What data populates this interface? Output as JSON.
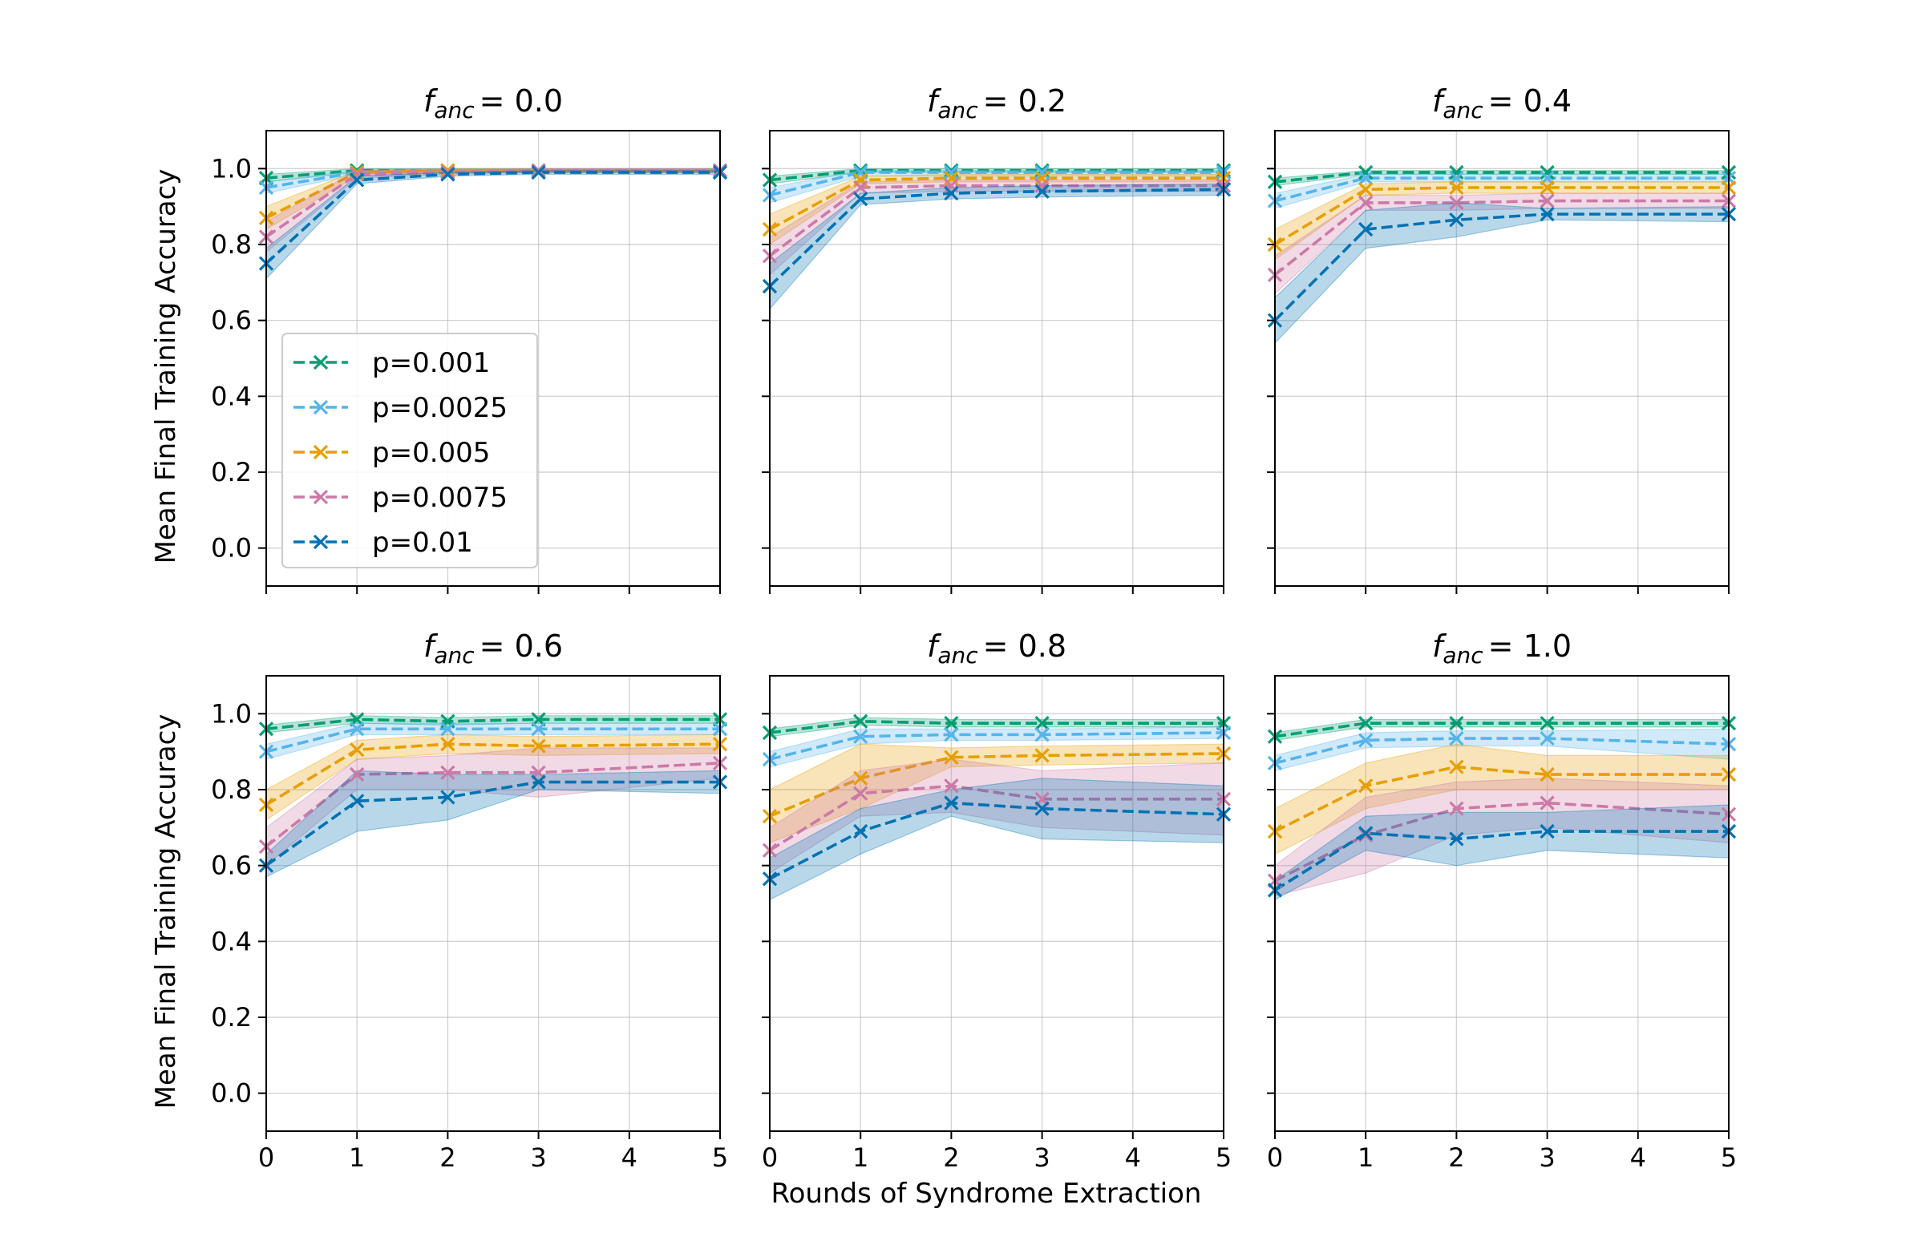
{
  "chart_data": {
    "type": "line",
    "xlabel": "Rounds of Syndrome Extraction",
    "ylabel": "Mean Final Training Accuracy",
    "x": [
      0,
      1,
      2,
      3,
      4,
      5
    ],
    "xlim": [
      0,
      5
    ],
    "ylim": [
      -0.1,
      1.1
    ],
    "xticks": [
      "0",
      "1",
      "2",
      "3",
      "4",
      "5"
    ],
    "yticks": [
      "0.0",
      "0.2",
      "0.4",
      "0.6",
      "0.8",
      "1.0"
    ],
    "grid": true,
    "legend_position": "lower-left of first panel",
    "series_colors": {
      "p=0.001": "#009e73",
      "p=0.0025": "#56b4e9",
      "p=0.005": "#e69f00",
      "p=0.0075": "#cc79a7",
      "p=0.01": "#0072b2"
    },
    "legend": [
      "p=0.001",
      "p=0.0025",
      "p=0.005",
      "p=0.0075",
      "p=0.01"
    ],
    "panels": [
      {
        "title_symbol": "f",
        "title_sub": "anc",
        "title_value": "= 0.0",
        "series": [
          {
            "name": "p=0.001",
            "x": [
              0,
              1,
              2,
              3,
              5
            ],
            "values": [
              0.975,
              0.995,
              0.995,
              0.995,
              0.995
            ],
            "lower": [
              0.965,
              0.99,
              0.99,
              0.99,
              0.99
            ],
            "upper": [
              0.985,
              1.0,
              1.0,
              1.0,
              1.0
            ]
          },
          {
            "name": "p=0.0025",
            "x": [
              0,
              1,
              2,
              3,
              5
            ],
            "values": [
              0.95,
              0.99,
              0.995,
              0.995,
              0.995
            ],
            "lower": [
              0.935,
              0.985,
              0.99,
              0.99,
              0.99
            ],
            "upper": [
              0.965,
              0.995,
              1.0,
              1.0,
              1.0
            ]
          },
          {
            "name": "p=0.005",
            "x": [
              0,
              1,
              2,
              3,
              5
            ],
            "values": [
              0.87,
              0.99,
              0.995,
              0.995,
              0.995
            ],
            "lower": [
              0.84,
              0.98,
              0.99,
              0.99,
              0.99
            ],
            "upper": [
              0.9,
              0.995,
              1.0,
              1.0,
              1.0
            ]
          },
          {
            "name": "p=0.0075",
            "x": [
              0,
              1,
              2,
              3,
              5
            ],
            "values": [
              0.82,
              0.985,
              0.99,
              0.995,
              0.995
            ],
            "lower": [
              0.78,
              0.975,
              0.985,
              0.99,
              0.99
            ],
            "upper": [
              0.86,
              0.995,
              0.995,
              1.0,
              1.0
            ]
          },
          {
            "name": "p=0.01",
            "x": [
              0,
              1,
              2,
              3,
              5
            ],
            "values": [
              0.75,
              0.97,
              0.985,
              0.99,
              0.99
            ],
            "lower": [
              0.71,
              0.96,
              0.98,
              0.985,
              0.985
            ],
            "upper": [
              0.79,
              0.98,
              0.99,
              0.995,
              0.995
            ]
          }
        ]
      },
      {
        "title_symbol": "f",
        "title_sub": "anc",
        "title_value": "= 0.2",
        "series": [
          {
            "name": "p=0.001",
            "x": [
              0,
              1,
              2,
              3,
              5
            ],
            "values": [
              0.97,
              0.995,
              0.995,
              0.995,
              0.995
            ],
            "lower": [
              0.96,
              0.99,
              0.99,
              0.99,
              0.99
            ],
            "upper": [
              0.98,
              1.0,
              1.0,
              1.0,
              1.0
            ]
          },
          {
            "name": "p=0.0025",
            "x": [
              0,
              1,
              2,
              3,
              5
            ],
            "values": [
              0.93,
              0.99,
              0.99,
              0.99,
              0.99
            ],
            "lower": [
              0.91,
              0.98,
              0.98,
              0.98,
              0.98
            ],
            "upper": [
              0.95,
              0.995,
              0.995,
              0.995,
              0.995
            ]
          },
          {
            "name": "p=0.005",
            "x": [
              0,
              1,
              2,
              3,
              5
            ],
            "values": [
              0.84,
              0.97,
              0.975,
              0.975,
              0.975
            ],
            "lower": [
              0.8,
              0.96,
              0.965,
              0.965,
              0.965
            ],
            "upper": [
              0.88,
              0.98,
              0.985,
              0.985,
              0.985
            ]
          },
          {
            "name": "p=0.0075",
            "x": [
              0,
              1,
              2,
              3,
              5
            ],
            "values": [
              0.77,
              0.95,
              0.955,
              0.955,
              0.955
            ],
            "lower": [
              0.72,
              0.935,
              0.94,
              0.94,
              0.94
            ],
            "upper": [
              0.82,
              0.965,
              0.97,
              0.97,
              0.97
            ]
          },
          {
            "name": "p=0.01",
            "x": [
              0,
              1,
              2,
              3,
              5
            ],
            "values": [
              0.69,
              0.92,
              0.935,
              0.94,
              0.945
            ],
            "lower": [
              0.63,
              0.905,
              0.92,
              0.925,
              0.93
            ],
            "upper": [
              0.75,
              0.935,
              0.95,
              0.955,
              0.96
            ]
          }
        ]
      },
      {
        "title_symbol": "f",
        "title_sub": "anc",
        "title_value": "= 0.4",
        "series": [
          {
            "name": "p=0.001",
            "x": [
              0,
              1,
              2,
              3,
              5
            ],
            "values": [
              0.965,
              0.99,
              0.99,
              0.99,
              0.99
            ],
            "lower": [
              0.955,
              0.985,
              0.985,
              0.985,
              0.985
            ],
            "upper": [
              0.975,
              0.995,
              0.995,
              0.995,
              0.995
            ]
          },
          {
            "name": "p=0.0025",
            "x": [
              0,
              1,
              2,
              3,
              5
            ],
            "values": [
              0.915,
              0.975,
              0.975,
              0.975,
              0.975
            ],
            "lower": [
              0.895,
              0.965,
              0.965,
              0.965,
              0.965
            ],
            "upper": [
              0.935,
              0.985,
              0.985,
              0.985,
              0.985
            ]
          },
          {
            "name": "p=0.005",
            "x": [
              0,
              1,
              2,
              3,
              5
            ],
            "values": [
              0.8,
              0.945,
              0.95,
              0.95,
              0.95
            ],
            "lower": [
              0.76,
              0.93,
              0.935,
              0.935,
              0.935
            ],
            "upper": [
              0.84,
              0.96,
              0.965,
              0.965,
              0.965
            ]
          },
          {
            "name": "p=0.0075",
            "x": [
              0,
              1,
              2,
              3,
              5
            ],
            "values": [
              0.72,
              0.91,
              0.91,
              0.915,
              0.915
            ],
            "lower": [
              0.67,
              0.89,
              0.89,
              0.895,
              0.895
            ],
            "upper": [
              0.77,
              0.93,
              0.93,
              0.935,
              0.935
            ]
          },
          {
            "name": "p=0.01",
            "x": [
              0,
              1,
              2,
              3,
              5
            ],
            "values": [
              0.6,
              0.84,
              0.865,
              0.88,
              0.88
            ],
            "lower": [
              0.54,
              0.79,
              0.82,
              0.865,
              0.86
            ],
            "upper": [
              0.66,
              0.89,
              0.91,
              0.895,
              0.9
            ]
          }
        ]
      },
      {
        "title_symbol": "f",
        "title_sub": "anc",
        "title_value": "= 0.6",
        "series": [
          {
            "name": "p=0.001",
            "x": [
              0,
              1,
              2,
              3,
              5
            ],
            "values": [
              0.96,
              0.985,
              0.98,
              0.985,
              0.985
            ],
            "lower": [
              0.95,
              0.975,
              0.97,
              0.975,
              0.975
            ],
            "upper": [
              0.97,
              0.995,
              0.99,
              0.995,
              0.995
            ]
          },
          {
            "name": "p=0.0025",
            "x": [
              0,
              1,
              2,
              3,
              5
            ],
            "values": [
              0.9,
              0.96,
              0.96,
              0.96,
              0.96
            ],
            "lower": [
              0.88,
              0.945,
              0.945,
              0.945,
              0.945
            ],
            "upper": [
              0.92,
              0.975,
              0.975,
              0.975,
              0.975
            ]
          },
          {
            "name": "p=0.005",
            "x": [
              0,
              1,
              2,
              3,
              5
            ],
            "values": [
              0.76,
              0.905,
              0.92,
              0.915,
              0.92
            ],
            "lower": [
              0.72,
              0.88,
              0.895,
              0.89,
              0.895
            ],
            "upper": [
              0.8,
              0.93,
              0.945,
              0.94,
              0.945
            ]
          },
          {
            "name": "p=0.0075",
            "x": [
              0,
              1,
              2,
              3,
              5
            ],
            "values": [
              0.65,
              0.84,
              0.845,
              0.845,
              0.87
            ],
            "lower": [
              0.6,
              0.8,
              0.8,
              0.78,
              0.83
            ],
            "upper": [
              0.7,
              0.88,
              0.89,
              0.91,
              0.91
            ]
          },
          {
            "name": "p=0.01",
            "x": [
              0,
              1,
              2,
              3,
              5
            ],
            "values": [
              0.6,
              0.77,
              0.78,
              0.82,
              0.82
            ],
            "lower": [
              0.57,
              0.69,
              0.72,
              0.8,
              0.79
            ],
            "upper": [
              0.63,
              0.85,
              0.84,
              0.84,
              0.85
            ]
          }
        ]
      },
      {
        "title_symbol": "f",
        "title_sub": "anc",
        "title_value": "= 0.8",
        "series": [
          {
            "name": "p=0.001",
            "x": [
              0,
              1,
              2,
              3,
              5
            ],
            "values": [
              0.95,
              0.98,
              0.975,
              0.975,
              0.975
            ],
            "lower": [
              0.94,
              0.97,
              0.965,
              0.965,
              0.965
            ],
            "upper": [
              0.96,
              0.99,
              0.985,
              0.985,
              0.985
            ]
          },
          {
            "name": "p=0.0025",
            "x": [
              0,
              1,
              2,
              3,
              5
            ],
            "values": [
              0.88,
              0.94,
              0.945,
              0.945,
              0.95
            ],
            "lower": [
              0.86,
              0.92,
              0.93,
              0.93,
              0.935
            ],
            "upper": [
              0.9,
              0.96,
              0.96,
              0.96,
              0.965
            ]
          },
          {
            "name": "p=0.005",
            "x": [
              0,
              1,
              2,
              3,
              5
            ],
            "values": [
              0.73,
              0.83,
              0.885,
              0.89,
              0.895
            ],
            "lower": [
              0.66,
              0.75,
              0.86,
              0.865,
              0.87
            ],
            "upper": [
              0.8,
              0.92,
              0.91,
              0.915,
              0.92
            ]
          },
          {
            "name": "p=0.0075",
            "x": [
              0,
              1,
              2,
              3,
              5
            ],
            "values": [
              0.64,
              0.79,
              0.81,
              0.775,
              0.775
            ],
            "lower": [
              0.58,
              0.73,
              0.74,
              0.7,
              0.68
            ],
            "upper": [
              0.7,
              0.85,
              0.88,
              0.85,
              0.87
            ]
          },
          {
            "name": "p=0.01",
            "x": [
              0,
              1,
              2,
              3,
              5
            ],
            "values": [
              0.565,
              0.69,
              0.765,
              0.75,
              0.735
            ],
            "lower": [
              0.51,
              0.63,
              0.73,
              0.67,
              0.66
            ],
            "upper": [
              0.62,
              0.75,
              0.8,
              0.83,
              0.81
            ]
          }
        ]
      },
      {
        "title_symbol": "f",
        "title_sub": "anc",
        "title_value": "= 1.0",
        "series": [
          {
            "name": "p=0.001",
            "x": [
              0,
              1,
              2,
              3,
              5
            ],
            "values": [
              0.94,
              0.975,
              0.975,
              0.975,
              0.975
            ],
            "lower": [
              0.93,
              0.965,
              0.965,
              0.965,
              0.965
            ],
            "upper": [
              0.95,
              0.985,
              0.985,
              0.985,
              0.985
            ]
          },
          {
            "name": "p=0.0025",
            "x": [
              0,
              1,
              2,
              3,
              5
            ],
            "values": [
              0.87,
              0.93,
              0.935,
              0.935,
              0.92
            ],
            "lower": [
              0.85,
              0.91,
              0.915,
              0.915,
              0.88
            ],
            "upper": [
              0.89,
              0.95,
              0.955,
              0.955,
              0.96
            ]
          },
          {
            "name": "p=0.005",
            "x": [
              0,
              1,
              2,
              3,
              5
            ],
            "values": [
              0.69,
              0.81,
              0.86,
              0.84,
              0.84
            ],
            "lower": [
              0.63,
              0.75,
              0.8,
              0.8,
              0.8
            ],
            "upper": [
              0.75,
              0.87,
              0.92,
              0.89,
              0.89
            ]
          },
          {
            "name": "p=0.0075",
            "x": [
              0,
              1,
              2,
              3,
              5
            ],
            "values": [
              0.56,
              0.68,
              0.75,
              0.765,
              0.735
            ],
            "lower": [
              0.52,
              0.58,
              0.68,
              0.7,
              0.66
            ],
            "upper": [
              0.6,
              0.78,
              0.82,
              0.83,
              0.81
            ]
          },
          {
            "name": "p=0.01",
            "x": [
              0,
              1,
              2,
              3,
              5
            ],
            "values": [
              0.535,
              0.685,
              0.67,
              0.69,
              0.69
            ],
            "lower": [
              0.51,
              0.64,
              0.6,
              0.64,
              0.62
            ],
            "upper": [
              0.56,
              0.73,
              0.74,
              0.74,
              0.76
            ]
          }
        ]
      }
    ]
  }
}
